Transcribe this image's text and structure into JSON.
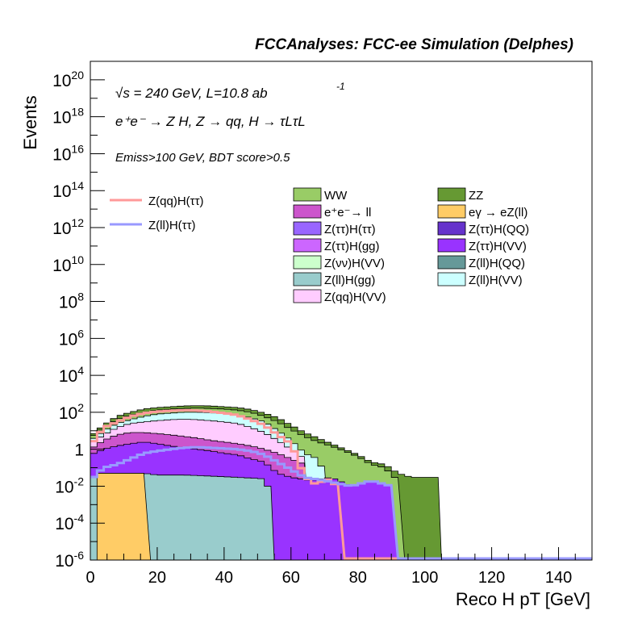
{
  "header": {
    "title": "FCCAnalyses: FCC-ee Simulation (Delphes)"
  },
  "annotations": {
    "sqrt_s_label": "√s = 240 GeV, L=10.8 ab",
    "lumi_exponent": "-1",
    "process_label": "e⁺e⁻ → Z H, Z → qq, H → τLτL",
    "selection_label": "Emiss>100 GeV, BDT score>0.5"
  },
  "colors": {
    "WW": "#99cc66",
    "ZZ": "#669933",
    "ee_ll": "#cc55cc",
    "egamma_eZ": "#ffcc66",
    "Ztautau_Htautau": "#9966ff",
    "Ztautau_HQQ": "#6633cc",
    "Ztautau_Hgg": "#cc66ff",
    "Ztautau_HVV": "#9933ff",
    "Znunu_HVV": "#ccffcc",
    "Zll_HQQ": "#669999",
    "Zll_Hgg": "#99cccc",
    "Zll_HVV": "#ccffff",
    "Zqq_HVV": "#ffccff",
    "sig_qq": "#ff9999",
    "sig_ll": "#9999ff"
  },
  "chart_data": {
    "type": "area",
    "title": "FCCAnalyses: FCC-ee Simulation (Delphes)",
    "xlabel": "Reco H pT [GeV]",
    "ylabel": "Events",
    "xlim": [
      0,
      150
    ],
    "ylim": [
      1e-06,
      1e+21
    ],
    "yscale": "log",
    "xticks": [
      "0",
      "20",
      "40",
      "60",
      "80",
      "100",
      "120",
      "140"
    ],
    "yticks": [
      {
        "base": "10",
        "exp": "-6",
        "value": 1e-06
      },
      {
        "base": "10",
        "exp": "-4",
        "value": 0.0001
      },
      {
        "base": "10",
        "exp": "-2",
        "value": 0.01
      },
      {
        "base": "1",
        "exp": "",
        "value": 1
      },
      {
        "base": "10",
        "exp": "2",
        "value": 100.0
      },
      {
        "base": "10",
        "exp": "4",
        "value": 10000.0
      },
      {
        "base": "10",
        "exp": "6",
        "value": 1000000.0
      },
      {
        "base": "10",
        "exp": "8",
        "value": 100000000.0
      },
      {
        "base": "10",
        "exp": "10",
        "value": 10000000000.0
      },
      {
        "base": "10",
        "exp": "12",
        "value": 1000000000000.0
      },
      {
        "base": "10",
        "exp": "14",
        "value": 100000000000000.0
      },
      {
        "base": "10",
        "exp": "16",
        "value": 1e+16
      },
      {
        "base": "10",
        "exp": "18",
        "value": 1e+18
      },
      {
        "base": "10",
        "exp": "20",
        "value": 1e+20
      }
    ],
    "bin_width": 2,
    "stack_envelopes": [
      {
        "name": "ZZ",
        "color_key": "ZZ",
        "points": [
          [
            0,
            5
          ],
          [
            2,
            10
          ],
          [
            4,
            20
          ],
          [
            8,
            60
          ],
          [
            12,
            100
          ],
          [
            16,
            150
          ],
          [
            20,
            180
          ],
          [
            24,
            200
          ],
          [
            28,
            220
          ],
          [
            32,
            230
          ],
          [
            36,
            220
          ],
          [
            40,
            200
          ],
          [
            44,
            180
          ],
          [
            48,
            140
          ],
          [
            52,
            90
          ],
          [
            56,
            50
          ],
          [
            60,
            20
          ],
          [
            64,
            8
          ],
          [
            68,
            4
          ],
          [
            72,
            2
          ],
          [
            76,
            1
          ],
          [
            80,
            0.5
          ],
          [
            84,
            0.2
          ],
          [
            88,
            0.15
          ],
          [
            92,
            0.05
          ],
          [
            96,
            0.03
          ],
          [
            100,
            0.03
          ],
          [
            103,
            0.03
          ]
        ]
      },
      {
        "name": "WW",
        "color_key": "WW",
        "points": [
          [
            0,
            4
          ],
          [
            2,
            8
          ],
          [
            4,
            15
          ],
          [
            8,
            40
          ],
          [
            12,
            70
          ],
          [
            16,
            100
          ],
          [
            20,
            130
          ],
          [
            24,
            150
          ],
          [
            28,
            160
          ],
          [
            32,
            170
          ],
          [
            36,
            160
          ],
          [
            40,
            150
          ],
          [
            44,
            130
          ],
          [
            48,
            100
          ],
          [
            52,
            60
          ],
          [
            56,
            30
          ],
          [
            60,
            12
          ],
          [
            64,
            5
          ],
          [
            68,
            2.5
          ],
          [
            72,
            1.5
          ],
          [
            76,
            0.8
          ],
          [
            80,
            0.4
          ],
          [
            84,
            0.15
          ],
          [
            88,
            0.1
          ],
          [
            92,
            0.02
          ]
        ]
      },
      {
        "name": "Z(ll)H(VV)",
        "color_key": "Zll_HVV",
        "points": [
          [
            0,
            3
          ],
          [
            2,
            5
          ],
          [
            4,
            10
          ],
          [
            8,
            25
          ],
          [
            12,
            40
          ],
          [
            16,
            60
          ],
          [
            20,
            80
          ],
          [
            24,
            90
          ],
          [
            28,
            100
          ],
          [
            32,
            100
          ],
          [
            36,
            95
          ],
          [
            40,
            85
          ],
          [
            44,
            70
          ],
          [
            48,
            50
          ],
          [
            52,
            30
          ],
          [
            56,
            10
          ],
          [
            60,
            3
          ],
          [
            64,
            0.6
          ],
          [
            68,
            0.3
          ],
          [
            70,
            0.05
          ]
        ]
      },
      {
        "name": "Z(qq)H(VV)",
        "color_key": "Zqq_HVV",
        "points": [
          [
            0,
            2
          ],
          [
            4,
            6
          ],
          [
            8,
            15
          ],
          [
            12,
            25
          ],
          [
            16,
            30
          ],
          [
            20,
            35
          ],
          [
            24,
            40
          ],
          [
            28,
            42
          ],
          [
            32,
            40
          ],
          [
            36,
            35
          ],
          [
            40,
            30
          ],
          [
            44,
            25
          ],
          [
            48,
            15
          ],
          [
            52,
            8
          ],
          [
            56,
            3
          ],
          [
            60,
            1
          ],
          [
            64,
            0.3
          ]
        ]
      },
      {
        "name": "e⁺e⁻→ ll",
        "color_key": "ee_ll",
        "points": [
          [
            0,
            1
          ],
          [
            4,
            3
          ],
          [
            8,
            6
          ],
          [
            12,
            8
          ],
          [
            16,
            8
          ],
          [
            20,
            7
          ],
          [
            24,
            6
          ],
          [
            28,
            5
          ],
          [
            32,
            4
          ],
          [
            36,
            3
          ],
          [
            40,
            2.5
          ],
          [
            44,
            2
          ],
          [
            48,
            1.5
          ],
          [
            52,
            1
          ],
          [
            56,
            0.6
          ],
          [
            60,
            0.3
          ],
          [
            64,
            0.15
          ]
        ]
      },
      {
        "name": "Z(ττ)H(VV)",
        "color_key": "Ztautau_HVV",
        "points": [
          [
            0,
            0.5
          ],
          [
            4,
            1
          ],
          [
            8,
            1.5
          ],
          [
            12,
            2
          ],
          [
            16,
            2.5
          ],
          [
            20,
            2
          ],
          [
            24,
            1.5
          ],
          [
            28,
            1.2
          ],
          [
            32,
            1
          ],
          [
            36,
            0.8
          ],
          [
            40,
            0.6
          ],
          [
            44,
            0.5
          ],
          [
            48,
            0.3
          ],
          [
            52,
            0.2
          ],
          [
            56,
            0.05
          ],
          [
            60,
            0.03
          ],
          [
            66,
            0.02
          ],
          [
            72,
            0.03
          ],
          [
            78,
            0.01
          ],
          [
            84,
            0.02
          ],
          [
            90,
            0.01
          ]
        ]
      },
      {
        "name": "Z(ll)H(gg)",
        "color_key": "Zll_Hgg",
        "points": [
          [
            0,
            0.03
          ],
          [
            4,
            0.04
          ],
          [
            8,
            0.05
          ],
          [
            12,
            0.05
          ],
          [
            16,
            0.05
          ],
          [
            20,
            0.04
          ],
          [
            28,
            0.04
          ],
          [
            36,
            0.035
          ],
          [
            44,
            0.03
          ],
          [
            52,
            0.025
          ],
          [
            53,
            0.01
          ]
        ]
      },
      {
        "name": "eγ → eZ(ll)",
        "color_key": "egamma_eZ",
        "points": [
          [
            2,
            0.05
          ],
          [
            5,
            0.05
          ],
          [
            8,
            0.05
          ],
          [
            12,
            0.05
          ],
          [
            16,
            0.05
          ]
        ]
      }
    ],
    "signals": [
      {
        "name": "Z(qq)H(ττ)",
        "color_key": "sig_qq",
        "points": [
          [
            0,
            1.5
          ],
          [
            2,
            5
          ],
          [
            4,
            15
          ],
          [
            8,
            30
          ],
          [
            12,
            60
          ],
          [
            16,
            90
          ],
          [
            20,
            110
          ],
          [
            24,
            120
          ],
          [
            28,
            130
          ],
          [
            32,
            125
          ],
          [
            36,
            110
          ],
          [
            40,
            90
          ],
          [
            44,
            70
          ],
          [
            48,
            40
          ],
          [
            52,
            20
          ],
          [
            56,
            6
          ],
          [
            60,
            2
          ],
          [
            62,
            0.3
          ],
          [
            64,
            0.03
          ],
          [
            66,
            0.02
          ],
          [
            68,
            0.01
          ],
          [
            70,
            0.03
          ],
          [
            74,
            0.01
          ]
        ]
      },
      {
        "name": "Z(ll)H(ττ)",
        "color_key": "sig_ll",
        "points": [
          [
            0,
            0.02
          ],
          [
            2,
            0.05
          ],
          [
            4,
            0.1
          ],
          [
            8,
            0.15
          ],
          [
            12,
            0.3
          ],
          [
            16,
            0.6
          ],
          [
            20,
            0.8
          ],
          [
            24,
            1
          ],
          [
            28,
            1.2
          ],
          [
            32,
            1.3
          ],
          [
            36,
            1.2
          ],
          [
            40,
            1.1
          ],
          [
            44,
            1
          ],
          [
            48,
            0.8
          ],
          [
            52,
            0.5
          ],
          [
            56,
            0.2
          ],
          [
            60,
            0.08
          ],
          [
            64,
            0.03
          ],
          [
            70,
            0.02
          ],
          [
            78,
            0.01
          ],
          [
            84,
            0.02
          ],
          [
            90,
            0.01
          ]
        ]
      }
    ],
    "legend": {
      "placement": "top-right",
      "signal_entries": [
        {
          "label": "Z(qq)H(ττ)",
          "color_key": "sig_qq"
        },
        {
          "label": "Z(ll)H(ττ)",
          "color_key": "sig_ll"
        }
      ],
      "col1": [
        {
          "label": "WW",
          "color_key": "WW"
        },
        {
          "label": "e⁺e⁻→ ll",
          "color_key": "ee_ll"
        },
        {
          "label": "Z(ττ)H(ττ)",
          "color_key": "Ztautau_Htautau"
        },
        {
          "label": "Z(ττ)H(gg)",
          "color_key": "Ztautau_Hgg"
        },
        {
          "label": "Z(νν)H(VV)",
          "color_key": "Znunu_HVV"
        },
        {
          "label": "Z(ll)H(gg)",
          "color_key": "Zll_Hgg"
        },
        {
          "label": "Z(qq)H(VV)",
          "color_key": "Zqq_HVV"
        }
      ],
      "col2": [
        {
          "label": "ZZ",
          "color_key": "ZZ"
        },
        {
          "label": "eγ → eZ(ll)",
          "color_key": "egamma_eZ"
        },
        {
          "label": "Z(ττ)H(QQ)",
          "color_key": "Ztautau_HQQ"
        },
        {
          "label": "Z(ττ)H(VV)",
          "color_key": "Ztautau_HVV"
        },
        {
          "label": "Z(ll)H(QQ)",
          "color_key": "Zll_HQQ"
        },
        {
          "label": "Z(ll)H(VV)",
          "color_key": "Zll_HVV"
        }
      ]
    }
  }
}
